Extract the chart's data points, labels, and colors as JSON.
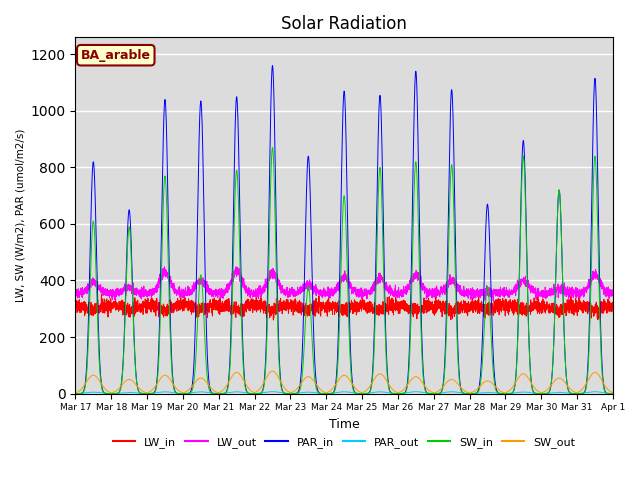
{
  "title": "Solar Radiation",
  "xlabel": "Time",
  "ylabel": "LW, SW (W/m2), PAR (umol/m2/s)",
  "ylim": [
    0,
    1260
  ],
  "yticks": [
    0,
    200,
    400,
    600,
    800,
    1000,
    1200
  ],
  "bg_color": "#dcdcdc",
  "annotation_text": "BA_arable",
  "annotation_facecolor": "#ffffcc",
  "annotation_edgecolor": "#8B0000",
  "annotation_textcolor": "#8B0000",
  "line_colors": {
    "LW_in": "#ff0000",
    "LW_out": "#ff00ff",
    "PAR_in": "#0000ff",
    "PAR_out": "#00ccff",
    "SW_in": "#00cc00",
    "SW_out": "#ff9900"
  },
  "n_days": 15,
  "points_per_day": 288,
  "lw_in_base": 310,
  "lw_out_base": 355,
  "par_in_peaks": [
    820,
    650,
    1040,
    1035,
    1050,
    1160,
    840,
    1070,
    1055,
    1140,
    1075,
    670,
    895,
    720,
    1115
  ],
  "sw_in_peaks": [
    610,
    590,
    770,
    420,
    790,
    870,
    380,
    700,
    800,
    820,
    810,
    380,
    840,
    720,
    840
  ],
  "sw_out_peaks": [
    65,
    50,
    65,
    55,
    75,
    80,
    60,
    65,
    70,
    60,
    50,
    45,
    70,
    55,
    75
  ],
  "lw_out_day_peaks": [
    395,
    375,
    430,
    400,
    435,
    430,
    385,
    415,
    410,
    420,
    400,
    360,
    400,
    370,
    420
  ]
}
